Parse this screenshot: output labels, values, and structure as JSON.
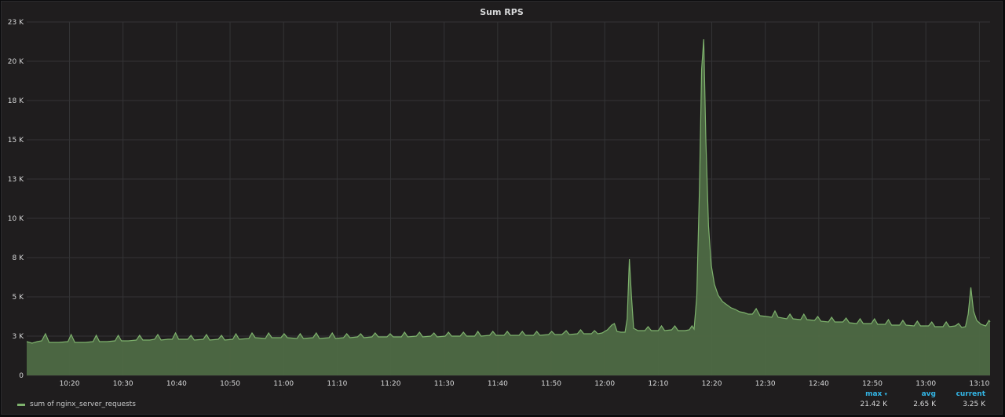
{
  "panel": {
    "title": "Sum RPS"
  },
  "legend": {
    "series_label": "sum of nginx_server_requests",
    "color": "#7eb26d",
    "headers": {
      "max": "max",
      "avg": "avg",
      "current": "current",
      "sort_indicator": "▾"
    },
    "values": {
      "max": "21.42 K",
      "avg": "2.65 K",
      "current": "3.25 K"
    }
  },
  "colors": {
    "background": "#1f1d1e",
    "grid": "#343436",
    "text": "#d8d9da",
    "accent": "#33b5e5",
    "series_line": "#7eb26d",
    "series_fill": "#4e6a45"
  },
  "chart_data": {
    "type": "area",
    "title": "Sum RPS",
    "xlabel": "",
    "ylabel": "",
    "y_ticks": [
      "0",
      "3 K",
      "5 K",
      "8 K",
      "10 K",
      "13 K",
      "15 K",
      "18 K",
      "20 K",
      "23 K"
    ],
    "ylim": [
      0,
      22500
    ],
    "x_ticks": [
      "10:20",
      "10:30",
      "10:40",
      "10:50",
      "11:00",
      "11:10",
      "11:20",
      "11:30",
      "11:40",
      "11:50",
      "12:00",
      "12:10",
      "12:20",
      "12:30",
      "12:40",
      "12:50",
      "13:00",
      "13:10"
    ],
    "x_tick_minutes": [
      620,
      630,
      640,
      650,
      660,
      670,
      680,
      690,
      700,
      710,
      720,
      730,
      740,
      750,
      760,
      770,
      780,
      790
    ],
    "xlim_minutes": [
      612,
      792
    ],
    "grid": true,
    "legend_position": "bottom-left",
    "series": [
      {
        "name": "sum of nginx_server_requests",
        "points": [
          [
            612,
            2150
          ],
          [
            613,
            2050
          ],
          [
            614,
            2150
          ],
          [
            614.8,
            2200
          ],
          [
            615.5,
            2650
          ],
          [
            616.2,
            2100
          ],
          [
            618,
            2100
          ],
          [
            619.7,
            2150
          ],
          [
            620.3,
            2600
          ],
          [
            621,
            2100
          ],
          [
            623,
            2100
          ],
          [
            624.4,
            2150
          ],
          [
            625,
            2550
          ],
          [
            625.6,
            2150
          ],
          [
            627,
            2150
          ],
          [
            628.5,
            2200
          ],
          [
            629.1,
            2550
          ],
          [
            629.7,
            2200
          ],
          [
            631,
            2200
          ],
          [
            632.5,
            2250
          ],
          [
            633.1,
            2550
          ],
          [
            633.7,
            2250
          ],
          [
            635,
            2250
          ],
          [
            635.9,
            2300
          ],
          [
            636.5,
            2600
          ],
          [
            637.1,
            2250
          ],
          [
            638.4,
            2300
          ],
          [
            639.2,
            2300
          ],
          [
            639.8,
            2700
          ],
          [
            640.4,
            2300
          ],
          [
            642.1,
            2300
          ],
          [
            642.7,
            2550
          ],
          [
            643.3,
            2250
          ],
          [
            645,
            2300
          ],
          [
            645.6,
            2600
          ],
          [
            646.2,
            2250
          ],
          [
            647.8,
            2300
          ],
          [
            648.4,
            2550
          ],
          [
            649,
            2250
          ],
          [
            650.5,
            2300
          ],
          [
            651.1,
            2650
          ],
          [
            651.7,
            2300
          ],
          [
            653.5,
            2350
          ],
          [
            654.1,
            2700
          ],
          [
            654.7,
            2400
          ],
          [
            656.6,
            2350
          ],
          [
            657.2,
            2700
          ],
          [
            657.8,
            2400
          ],
          [
            659.5,
            2400
          ],
          [
            660.1,
            2650
          ],
          [
            660.7,
            2400
          ],
          [
            662.5,
            2350
          ],
          [
            663.1,
            2650
          ],
          [
            663.7,
            2350
          ],
          [
            665.5,
            2400
          ],
          [
            666.1,
            2700
          ],
          [
            666.7,
            2350
          ],
          [
            668.5,
            2400
          ],
          [
            669.1,
            2700
          ],
          [
            669.7,
            2350
          ],
          [
            671.2,
            2400
          ],
          [
            671.8,
            2650
          ],
          [
            672.4,
            2400
          ],
          [
            673.8,
            2450
          ],
          [
            674.4,
            2650
          ],
          [
            675,
            2400
          ],
          [
            676.5,
            2450
          ],
          [
            677.1,
            2700
          ],
          [
            677.7,
            2450
          ],
          [
            679.3,
            2450
          ],
          [
            679.9,
            2650
          ],
          [
            680.5,
            2450
          ],
          [
            682,
            2450
          ],
          [
            682.6,
            2750
          ],
          [
            683.2,
            2450
          ],
          [
            684.8,
            2500
          ],
          [
            685.4,
            2750
          ],
          [
            686,
            2450
          ],
          [
            687.5,
            2500
          ],
          [
            688.1,
            2700
          ],
          [
            688.7,
            2450
          ],
          [
            690.2,
            2500
          ],
          [
            690.8,
            2750
          ],
          [
            691.4,
            2500
          ],
          [
            693,
            2500
          ],
          [
            693.6,
            2750
          ],
          [
            694.2,
            2500
          ],
          [
            695.7,
            2500
          ],
          [
            696.3,
            2800
          ],
          [
            696.9,
            2500
          ],
          [
            698.5,
            2550
          ],
          [
            699.1,
            2800
          ],
          [
            699.7,
            2550
          ],
          [
            701.2,
            2550
          ],
          [
            701.8,
            2800
          ],
          [
            702.4,
            2550
          ],
          [
            704,
            2550
          ],
          [
            704.6,
            2800
          ],
          [
            705.2,
            2550
          ],
          [
            706.7,
            2550
          ],
          [
            707.3,
            2800
          ],
          [
            707.9,
            2550
          ],
          [
            709.5,
            2600
          ],
          [
            710.1,
            2800
          ],
          [
            710.7,
            2600
          ],
          [
            712,
            2600
          ],
          [
            712.8,
            2850
          ],
          [
            713.4,
            2600
          ],
          [
            714.9,
            2650
          ],
          [
            715.5,
            2900
          ],
          [
            716.1,
            2650
          ],
          [
            717.5,
            2650
          ],
          [
            718.1,
            2850
          ],
          [
            718.7,
            2650
          ],
          [
            719.5,
            2700
          ],
          [
            720.5,
            2900
          ],
          [
            721.3,
            3200
          ],
          [
            721.8,
            3300
          ],
          [
            722.3,
            2800
          ],
          [
            723,
            2750
          ],
          [
            723.8,
            2750
          ],
          [
            724.2,
            3600
          ],
          [
            724.6,
            7400
          ],
          [
            725,
            5000
          ],
          [
            725.4,
            3000
          ],
          [
            726.2,
            2850
          ],
          [
            727.5,
            2850
          ],
          [
            728.1,
            3100
          ],
          [
            728.7,
            2850
          ],
          [
            730,
            2850
          ],
          [
            730.6,
            3150
          ],
          [
            731.2,
            2850
          ],
          [
            732.5,
            2900
          ],
          [
            733.1,
            3150
          ],
          [
            733.7,
            2850
          ],
          [
            735,
            2850
          ],
          [
            735.8,
            2900
          ],
          [
            736.3,
            3150
          ],
          [
            736.7,
            2950
          ],
          [
            737.2,
            5000
          ],
          [
            737.7,
            12000
          ],
          [
            738.1,
            19500
          ],
          [
            738.5,
            21400
          ],
          [
            738.9,
            15000
          ],
          [
            739.4,
            9500
          ],
          [
            739.9,
            7000
          ],
          [
            740.5,
            5800
          ],
          [
            741.2,
            5100
          ],
          [
            742,
            4700
          ],
          [
            742.8,
            4500
          ],
          [
            743.6,
            4300
          ],
          [
            744.4,
            4200
          ],
          [
            745.2,
            4050
          ],
          [
            746,
            4000
          ],
          [
            746.8,
            3900
          ],
          [
            747.6,
            3900
          ],
          [
            748.3,
            4250
          ],
          [
            749,
            3800
          ],
          [
            750.2,
            3750
          ],
          [
            751.2,
            3700
          ],
          [
            751.8,
            4100
          ],
          [
            752.4,
            3700
          ],
          [
            754,
            3600
          ],
          [
            754.6,
            3900
          ],
          [
            755.2,
            3600
          ],
          [
            756.6,
            3550
          ],
          [
            757.2,
            3900
          ],
          [
            757.8,
            3550
          ],
          [
            759.2,
            3500
          ],
          [
            759.8,
            3750
          ],
          [
            760.4,
            3450
          ],
          [
            761.8,
            3400
          ],
          [
            762.4,
            3700
          ],
          [
            763,
            3400
          ],
          [
            764.5,
            3400
          ],
          [
            765.1,
            3650
          ],
          [
            765.7,
            3350
          ],
          [
            767.1,
            3300
          ],
          [
            767.7,
            3600
          ],
          [
            768.3,
            3300
          ],
          [
            769.8,
            3300
          ],
          [
            770.4,
            3600
          ],
          [
            771,
            3250
          ],
          [
            772.4,
            3250
          ],
          [
            773,
            3550
          ],
          [
            773.6,
            3200
          ],
          [
            775.1,
            3200
          ],
          [
            775.7,
            3500
          ],
          [
            776.3,
            3200
          ],
          [
            777.8,
            3150
          ],
          [
            778.4,
            3450
          ],
          [
            779,
            3150
          ],
          [
            780.5,
            3150
          ],
          [
            781.1,
            3400
          ],
          [
            781.7,
            3100
          ],
          [
            783.2,
            3100
          ],
          [
            783.8,
            3400
          ],
          [
            784.4,
            3100
          ],
          [
            785.5,
            3150
          ],
          [
            786.1,
            3300
          ],
          [
            786.7,
            3050
          ],
          [
            787.4,
            3100
          ],
          [
            787.9,
            3900
          ],
          [
            788.4,
            5600
          ],
          [
            788.9,
            4100
          ],
          [
            789.5,
            3500
          ],
          [
            790.3,
            3250
          ],
          [
            791.2,
            3150
          ],
          [
            791.8,
            3500
          ],
          [
            792,
            3400
          ]
        ]
      }
    ]
  }
}
